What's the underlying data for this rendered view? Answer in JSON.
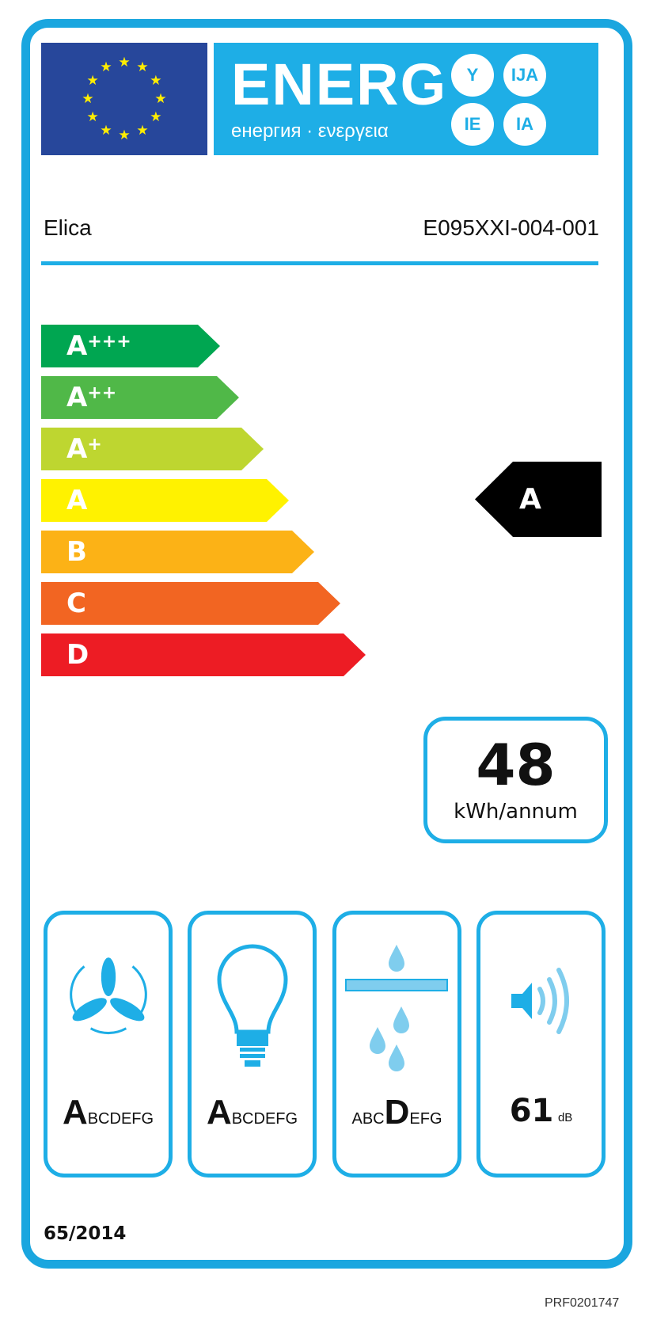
{
  "header": {
    "energ": "ENERG",
    "subtitle": "енергия · ενεργεια",
    "suffixes": [
      "Y",
      "IJA",
      "IE",
      "IA"
    ],
    "colors": {
      "flag": "#27479b",
      "banner": "#1eaee6",
      "stars": "#ffed00"
    }
  },
  "supplier": "Elica",
  "model": "E095XXI-004-001",
  "scale": [
    {
      "label": "A",
      "sup": "+++",
      "color": "#00a651"
    },
    {
      "label": "A",
      "sup": "++",
      "color": "#50b848"
    },
    {
      "label": "A",
      "sup": "+",
      "color": "#bed630"
    },
    {
      "label": "A",
      "sup": "",
      "color": "#fff200"
    },
    {
      "label": "B",
      "sup": "",
      "color": "#fcb216"
    },
    {
      "label": "C",
      "sup": "",
      "color": "#f26522"
    },
    {
      "label": "D",
      "sup": "",
      "color": "#ed1c24"
    }
  ],
  "energy_class": "A",
  "consumption": {
    "value": "48",
    "unit": "kWh/annum"
  },
  "pictograms": [
    {
      "icon": "fan-icon",
      "pre": "",
      "big": "A",
      "post": "BCDEFG"
    },
    {
      "icon": "light-bulb-icon",
      "pre": "",
      "big": "A",
      "post": "BCDEFG"
    },
    {
      "icon": "grease-filter-icon",
      "pre": "ABC",
      "big": "D",
      "post": "EFG"
    },
    {
      "icon": "speaker-icon",
      "value": "61",
      "unit": "dB"
    }
  ],
  "regulation": "65/2014",
  "code": "PRF0201747"
}
